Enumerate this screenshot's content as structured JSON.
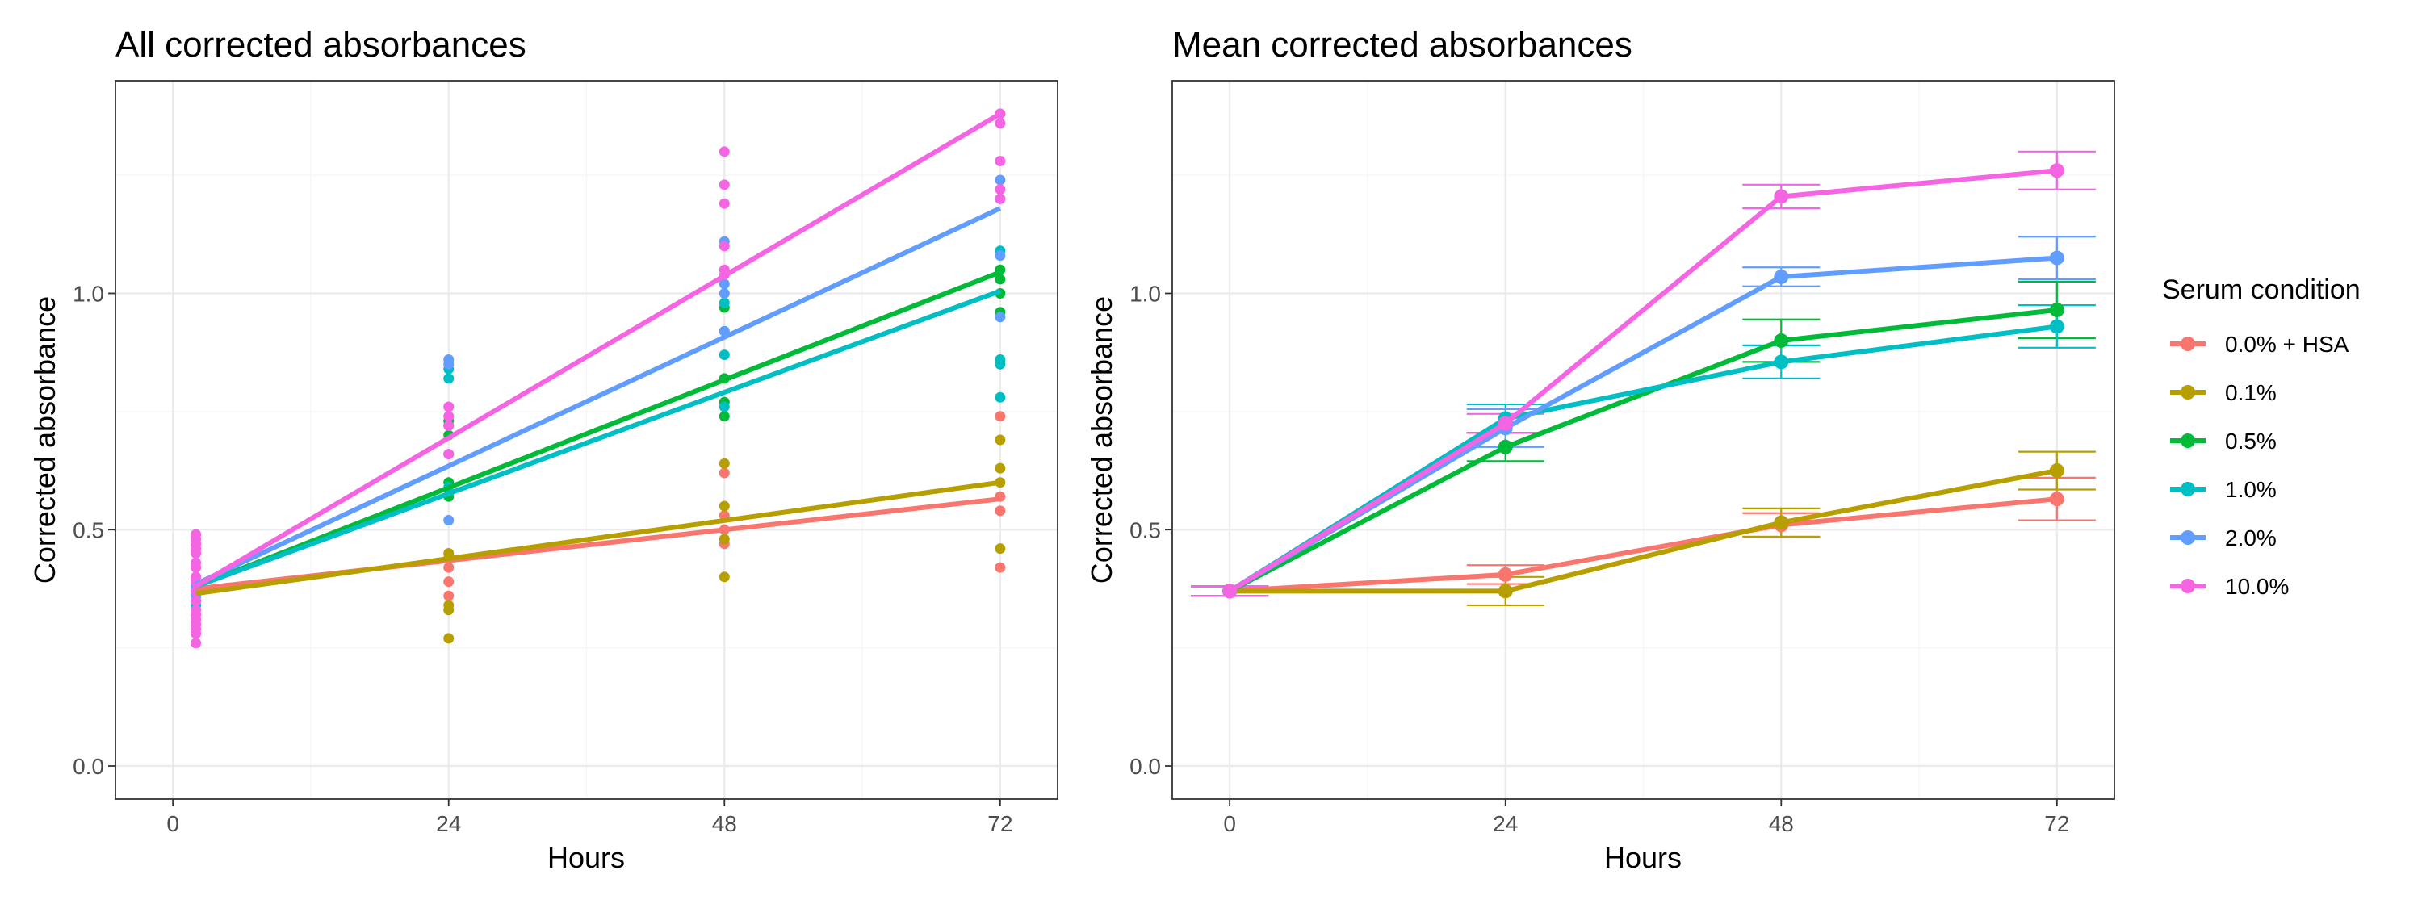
{
  "chart_data": [
    {
      "type": "scatter",
      "panel": "left",
      "title": "All corrected absorbances",
      "xlabel": "Hours",
      "ylabel": "Corrected absorbance",
      "xlim": [
        -5,
        77
      ],
      "ylim": [
        -0.07,
        1.45
      ],
      "xticks": [
        0,
        24,
        48,
        72
      ],
      "xminor": [
        12,
        36,
        60
      ],
      "yticks": [
        0.0,
        0.5,
        1.0
      ],
      "ytick_labels": [
        "0.0",
        "0.5",
        "1.0"
      ],
      "yminor": [
        0.25,
        0.75,
        1.25
      ],
      "grid": true,
      "trend_lines": [
        {
          "name": "0.0% + HSA",
          "x": [
            2,
            72
          ],
          "y": [
            0.375,
            0.565
          ]
        },
        {
          "name": "0.1%",
          "x": [
            2,
            72
          ],
          "y": [
            0.365,
            0.6
          ]
        },
        {
          "name": "0.5%",
          "x": [
            2,
            72
          ],
          "y": [
            0.38,
            1.045
          ]
        },
        {
          "name": "1.0%",
          "x": [
            2,
            72
          ],
          "y": [
            0.38,
            1.005
          ]
        },
        {
          "name": "2.0%",
          "x": [
            2,
            72
          ],
          "y": [
            0.385,
            1.18
          ]
        },
        {
          "name": "10.0%",
          "x": [
            2,
            72
          ],
          "y": [
            0.38,
            1.38
          ]
        }
      ],
      "points": [
        {
          "name": "0.0% + HSA",
          "x": [
            2,
            2,
            2,
            2,
            24,
            24,
            24,
            24,
            48,
            48,
            48,
            48,
            72,
            72,
            72,
            72
          ],
          "y": [
            0.35,
            0.38,
            0.4,
            0.34,
            0.42,
            0.39,
            0.44,
            0.36,
            0.47,
            0.5,
            0.53,
            0.62,
            0.42,
            0.54,
            0.57,
            0.74
          ]
        },
        {
          "name": "0.1%",
          "x": [
            2,
            2,
            2,
            2,
            24,
            24,
            24,
            24,
            48,
            48,
            48,
            48,
            72,
            72,
            72,
            72
          ],
          "y": [
            0.34,
            0.36,
            0.38,
            0.37,
            0.27,
            0.33,
            0.45,
            0.34,
            0.4,
            0.48,
            0.55,
            0.64,
            0.46,
            0.6,
            0.63,
            0.69
          ]
        },
        {
          "name": "0.5%",
          "x": [
            2,
            2,
            2,
            2,
            24,
            24,
            24,
            24,
            48,
            48,
            48,
            48,
            72,
            72,
            72,
            72
          ],
          "y": [
            0.36,
            0.38,
            0.39,
            0.37,
            0.57,
            0.6,
            0.7,
            0.73,
            0.74,
            0.77,
            0.82,
            0.97,
            0.96,
            1.0,
            1.03,
            1.05
          ]
        },
        {
          "name": "1.0%",
          "x": [
            2,
            2,
            2,
            2,
            24,
            24,
            24,
            24,
            48,
            48,
            48,
            48,
            72,
            72,
            72,
            72
          ],
          "y": [
            0.34,
            0.36,
            0.38,
            0.36,
            0.59,
            0.72,
            0.82,
            0.84,
            0.76,
            0.87,
            0.92,
            0.98,
            0.78,
            0.85,
            0.86,
            1.09
          ]
        },
        {
          "name": "2.0%",
          "x": [
            2,
            2,
            2,
            2,
            24,
            24,
            24,
            24,
            48,
            48,
            48,
            48,
            72,
            72,
            72,
            72
          ],
          "y": [
            0.36,
            0.37,
            0.38,
            0.39,
            0.52,
            0.66,
            0.85,
            0.86,
            0.92,
            1.0,
            1.02,
            1.11,
            0.95,
            1.08,
            1.2,
            1.24
          ]
        },
        {
          "name": "10.0%",
          "x": [
            2,
            2,
            2,
            2,
            2,
            2,
            2,
            2,
            2,
            2,
            2,
            2,
            2,
            2,
            2,
            2,
            2,
            2,
            24,
            24,
            24,
            24,
            48,
            48,
            48,
            48,
            48,
            48,
            72,
            72,
            72,
            72,
            72,
            72
          ],
          "y": [
            0.26,
            0.28,
            0.3,
            0.32,
            0.33,
            0.35,
            0.37,
            0.39,
            0.4,
            0.42,
            0.43,
            0.45,
            0.46,
            0.47,
            0.48,
            0.49,
            0.31,
            0.29,
            0.66,
            0.72,
            0.74,
            0.76,
            1.05,
            1.1,
            1.19,
            1.23,
            1.3,
            1.04,
            1.2,
            1.22,
            1.28,
            1.36,
            1.38,
            1.38
          ]
        }
      ]
    },
    {
      "type": "line",
      "panel": "right",
      "title": "Mean corrected absorbances",
      "xlabel": "Hours",
      "ylabel": "Corrected absorbance",
      "xlim": [
        -5,
        77
      ],
      "ylim": [
        -0.07,
        1.45
      ],
      "xticks": [
        0,
        24,
        48,
        72
      ],
      "xminor": [
        12,
        36,
        60
      ],
      "yticks": [
        0.0,
        0.5,
        1.0
      ],
      "ytick_labels": [
        "0.0",
        "0.5",
        "1.0"
      ],
      "yminor": [
        0.25,
        0.75,
        1.25
      ],
      "grid": true,
      "series": [
        {
          "name": "0.0% + HSA",
          "x": [
            0,
            24,
            48,
            72
          ],
          "y": [
            0.37,
            0.405,
            0.51,
            0.565
          ],
          "err": [
            0.01,
            0.02,
            0.025,
            0.045
          ]
        },
        {
          "name": "0.1%",
          "x": [
            0,
            24,
            48,
            72
          ],
          "y": [
            0.37,
            0.37,
            0.515,
            0.625
          ],
          "err": [
            0.01,
            0.03,
            0.03,
            0.04
          ]
        },
        {
          "name": "0.5%",
          "x": [
            0,
            24,
            48,
            72
          ],
          "y": [
            0.37,
            0.675,
            0.9,
            0.965
          ],
          "err": [
            0.01,
            0.03,
            0.045,
            0.06
          ]
        },
        {
          "name": "1.0%",
          "x": [
            0,
            24,
            48,
            72
          ],
          "y": [
            0.37,
            0.735,
            0.855,
            0.93
          ],
          "err": [
            0.01,
            0.03,
            0.035,
            0.045
          ]
        },
        {
          "name": "2.0%",
          "x": [
            0,
            24,
            48,
            72
          ],
          "y": [
            0.37,
            0.715,
            1.035,
            1.075
          ],
          "err": [
            0.01,
            0.04,
            0.02,
            0.045
          ]
        },
        {
          "name": "10.0%",
          "x": [
            0,
            24,
            48,
            72
          ],
          "y": [
            0.37,
            0.725,
            1.205,
            1.26
          ],
          "err": [
            0.01,
            0.02,
            0.025,
            0.04
          ]
        }
      ]
    }
  ],
  "legend": {
    "title": "Serum condition",
    "placement": "right",
    "items": [
      {
        "label": "0.0% + HSA",
        "color": "#F8766D"
      },
      {
        "label": "0.1%",
        "color": "#B79F00"
      },
      {
        "label": "0.5%",
        "color": "#00BA38"
      },
      {
        "label": "1.0%",
        "color": "#00BFC4"
      },
      {
        "label": "2.0%",
        "color": "#619CFF"
      },
      {
        "label": "10.0%",
        "color": "#F564E3"
      }
    ]
  }
}
